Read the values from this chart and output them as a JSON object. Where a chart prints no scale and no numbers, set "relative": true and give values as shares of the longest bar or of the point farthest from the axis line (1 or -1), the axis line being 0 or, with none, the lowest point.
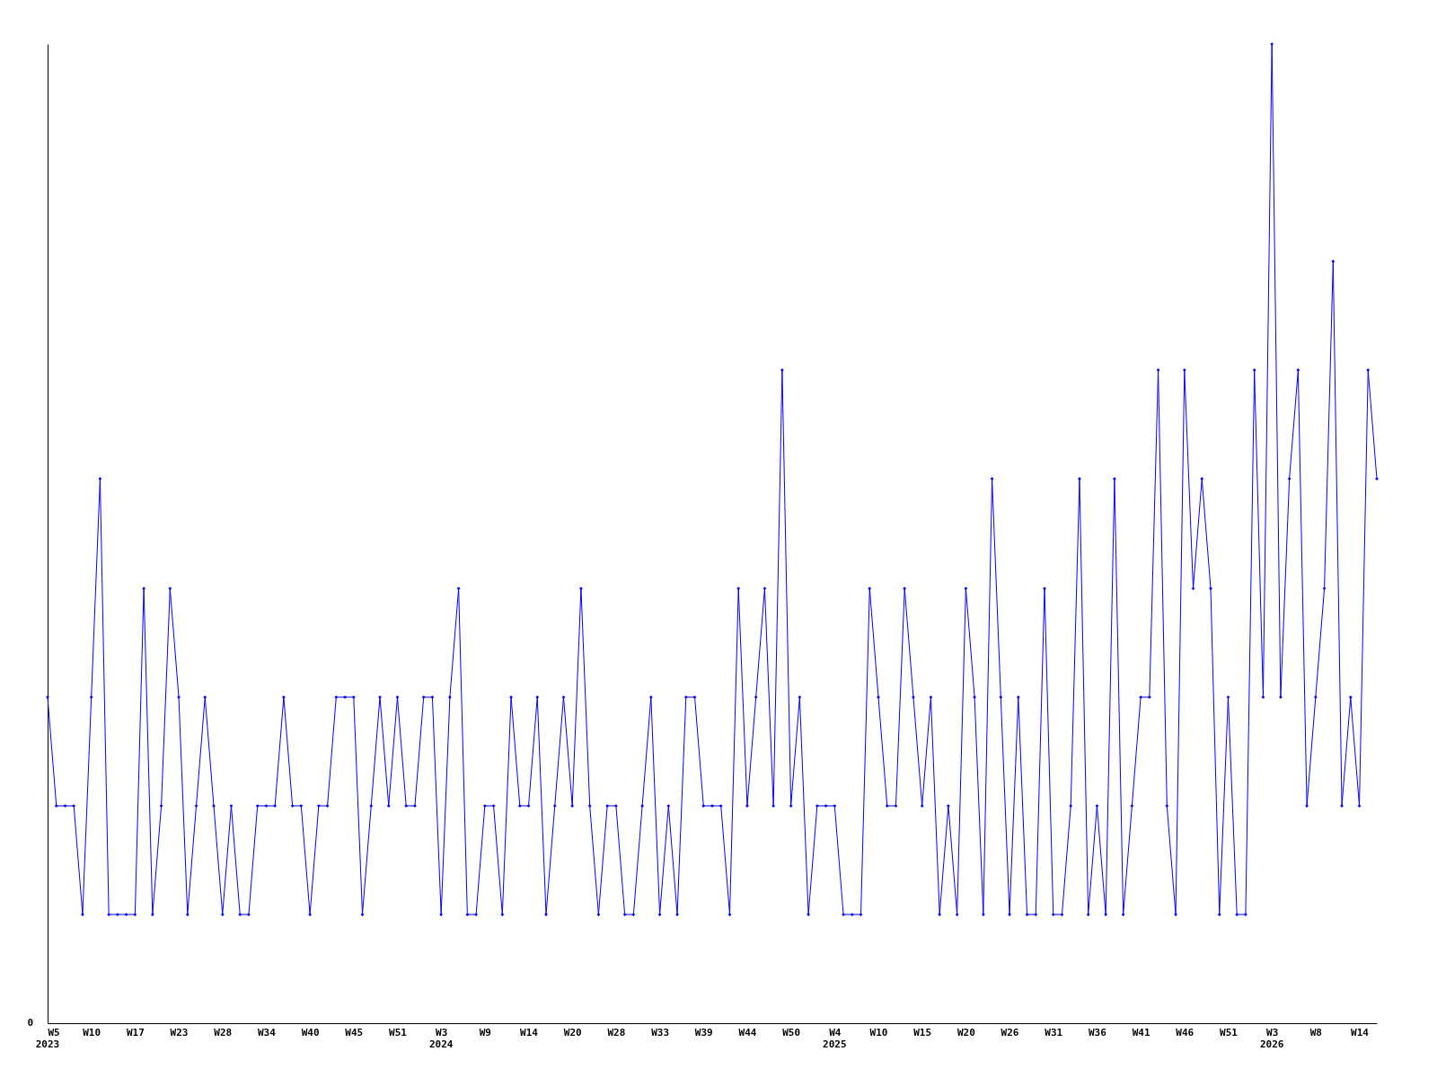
{
  "chart_data": {
    "type": "line",
    "relative": true,
    "marker": "diamond",
    "line_style": "solid",
    "grid": false,
    "categories": [
      "W5\n2023",
      null,
      null,
      null,
      null,
      "W10",
      null,
      null,
      null,
      null,
      "W17",
      null,
      null,
      null,
      null,
      "W23",
      null,
      null,
      null,
      null,
      "W28",
      null,
      null,
      null,
      null,
      "W34",
      null,
      null,
      null,
      null,
      "W40",
      null,
      null,
      null,
      null,
      "W45",
      null,
      null,
      null,
      null,
      "W51",
      null,
      null,
      null,
      null,
      "W3\n2024",
      null,
      null,
      null,
      null,
      "W9",
      null,
      null,
      null,
      null,
      "W14",
      null,
      null,
      null,
      null,
      "W20",
      null,
      null,
      null,
      null,
      "W28",
      null,
      null,
      null,
      null,
      "W33",
      null,
      null,
      null,
      null,
      "W39",
      null,
      null,
      null,
      null,
      "W44",
      null,
      null,
      null,
      null,
      "W50",
      null,
      null,
      null,
      null,
      "W4\n2025",
      null,
      null,
      null,
      null,
      "W10",
      null,
      null,
      null,
      null,
      "W15",
      null,
      null,
      null,
      null,
      "W20",
      null,
      null,
      null,
      null,
      "W26",
      null,
      null,
      null,
      null,
      "W31",
      null,
      null,
      null,
      null,
      "W36",
      null,
      null,
      null,
      null,
      "W41",
      null,
      null,
      null,
      null,
      "W46",
      null,
      null,
      null,
      null,
      "W51",
      null,
      null,
      null,
      null,
      "W3\n2026",
      null,
      null,
      null,
      null,
      "W8",
      null,
      null,
      null,
      null,
      "W14",
      null,
      null
    ],
    "series": [
      {
        "color": "#0000ff",
        "values": [
          0.333,
          0.222,
          0.222,
          0.222,
          0.111,
          0.333,
          0.556,
          0.111,
          0.111,
          0.111,
          0.111,
          0.444,
          0.111,
          0.222,
          0.444,
          0.333,
          0.111,
          0.222,
          0.333,
          0.222,
          0.111,
          0.222,
          0.111,
          0.111,
          0.222,
          0.222,
          0.222,
          0.333,
          0.222,
          0.222,
          0.111,
          0.222,
          0.222,
          0.333,
          0.333,
          0.333,
          0.111,
          0.222,
          0.333,
          0.222,
          0.333,
          0.222,
          0.222,
          0.333,
          0.333,
          0.111,
          0.333,
          0.444,
          0.111,
          0.111,
          0.222,
          0.222,
          0.111,
          0.333,
          0.222,
          0.222,
          0.333,
          0.111,
          0.222,
          0.333,
          0.222,
          0.444,
          0.222,
          0.111,
          0.222,
          0.222,
          0.111,
          0.111,
          0.222,
          0.333,
          0.111,
          0.222,
          0.111,
          0.333,
          0.333,
          0.222,
          0.222,
          0.222,
          0.111,
          0.444,
          0.222,
          0.333,
          0.444,
          0.222,
          0.667,
          0.222,
          0.333,
          0.111,
          0.222,
          0.222,
          0.222,
          0.111,
          0.111,
          0.111,
          0.444,
          0.333,
          0.222,
          0.222,
          0.444,
          0.333,
          0.222,
          0.333,
          0.111,
          0.222,
          0.111,
          0.444,
          0.333,
          0.111,
          0.556,
          0.333,
          0.111,
          0.333,
          0.111,
          0.111,
          0.444,
          0.111,
          0.111,
          0.222,
          0.556,
          0.111,
          0.222,
          0.111,
          0.556,
          0.111,
          0.222,
          0.333,
          0.333,
          0.667,
          0.222,
          0.111,
          0.667,
          0.444,
          0.556,
          0.444,
          0.111,
          0.333,
          0.111,
          0.111,
          0.667,
          0.333,
          1,
          0.333,
          0.556,
          0.667,
          0.222,
          0.333,
          0.444,
          0.778,
          0.222,
          0.333,
          0.222,
          0.667,
          0.556
        ]
      }
    ],
    "annotations": [
      "0"
    ]
  }
}
